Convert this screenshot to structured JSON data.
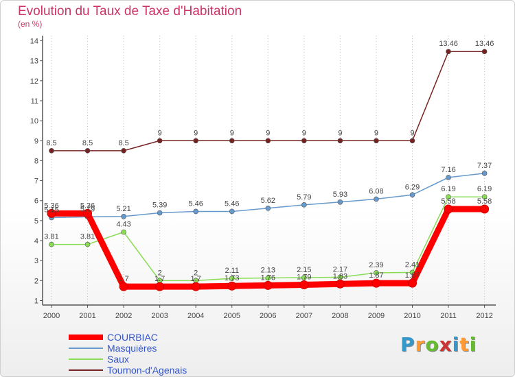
{
  "header": {
    "title": "Evolution du Taux de Taxe d'Habitation",
    "subtitle": "(en %)"
  },
  "logo": {
    "letters": [
      "P",
      "r",
      "o",
      "x",
      "i",
      "t",
      "i"
    ],
    "colors": [
      "#3399cc",
      "#ff9933",
      "#66bb33",
      "#cc3333",
      "#3399cc",
      "#ff9933",
      "#66bb33"
    ]
  },
  "chart_data": {
    "type": "line",
    "title": "Evolution du Taux de Taxe d'Habitation",
    "subtitle": "(en %)",
    "x": [
      "2000",
      "2001",
      "2002",
      "2003",
      "2004",
      "2005",
      "2006",
      "2007",
      "2008",
      "2009",
      "2010",
      "2011",
      "2012"
    ],
    "yticks": [
      1,
      2,
      3,
      4,
      5,
      6,
      7,
      8,
      9,
      10,
      11,
      12,
      13,
      14
    ],
    "ylim": [
      0.5,
      14.3
    ],
    "grid": "vertical-dotted",
    "legend_position": "bottom-left",
    "series": [
      {
        "name": "COURBIAC",
        "color": "#ff0000",
        "values": [
          5.36,
          5.36,
          1.7,
          1.7,
          1.7,
          1.73,
          1.76,
          1.79,
          1.83,
          1.87,
          1.87,
          5.58,
          5.58
        ],
        "labels": [
          "5.36",
          "5.36",
          "1.7",
          "1.7",
          "1.7",
          "1.73",
          "1.76",
          "1.79",
          "1.83",
          "1.87",
          "1.87",
          "5.58",
          "5.58"
        ]
      },
      {
        "name": "Masquières",
        "color": "#6699cc",
        "values": [
          5.15,
          5.19,
          5.21,
          5.39,
          5.46,
          5.46,
          5.62,
          5.79,
          5.93,
          6.08,
          6.29,
          7.16,
          7.37
        ],
        "labels": [
          "5.15",
          "5.19",
          "5.21",
          "5.39",
          "5.46",
          "5.46",
          "5.62",
          "5.79",
          "5.93",
          "6.08",
          "6.29",
          "7.16",
          "7.37"
        ]
      },
      {
        "name": "Saux",
        "color": "#88dd55",
        "values": [
          3.81,
          3.81,
          4.43,
          2,
          2,
          2.11,
          2.13,
          2.15,
          2.17,
          2.39,
          2.41,
          6.19,
          6.19
        ],
        "labels": [
          "3.81",
          "3.81",
          "4.43",
          "2",
          "2",
          "2.11",
          "2.13",
          "2.15",
          "2.17",
          "2.39",
          "2.41",
          "6.19",
          "6.19"
        ]
      },
      {
        "name": "Tournon-d'Agenais",
        "color": "#772222",
        "values": [
          8.5,
          8.5,
          8.5,
          9,
          9,
          9,
          9,
          9,
          9,
          9,
          9,
          13.46,
          13.46
        ],
        "labels": [
          "8.5",
          "8.5",
          "8.5",
          "9",
          "9",
          "9",
          "9",
          "9",
          "9",
          "9",
          "9",
          "13.46",
          "13.46"
        ]
      }
    ]
  }
}
